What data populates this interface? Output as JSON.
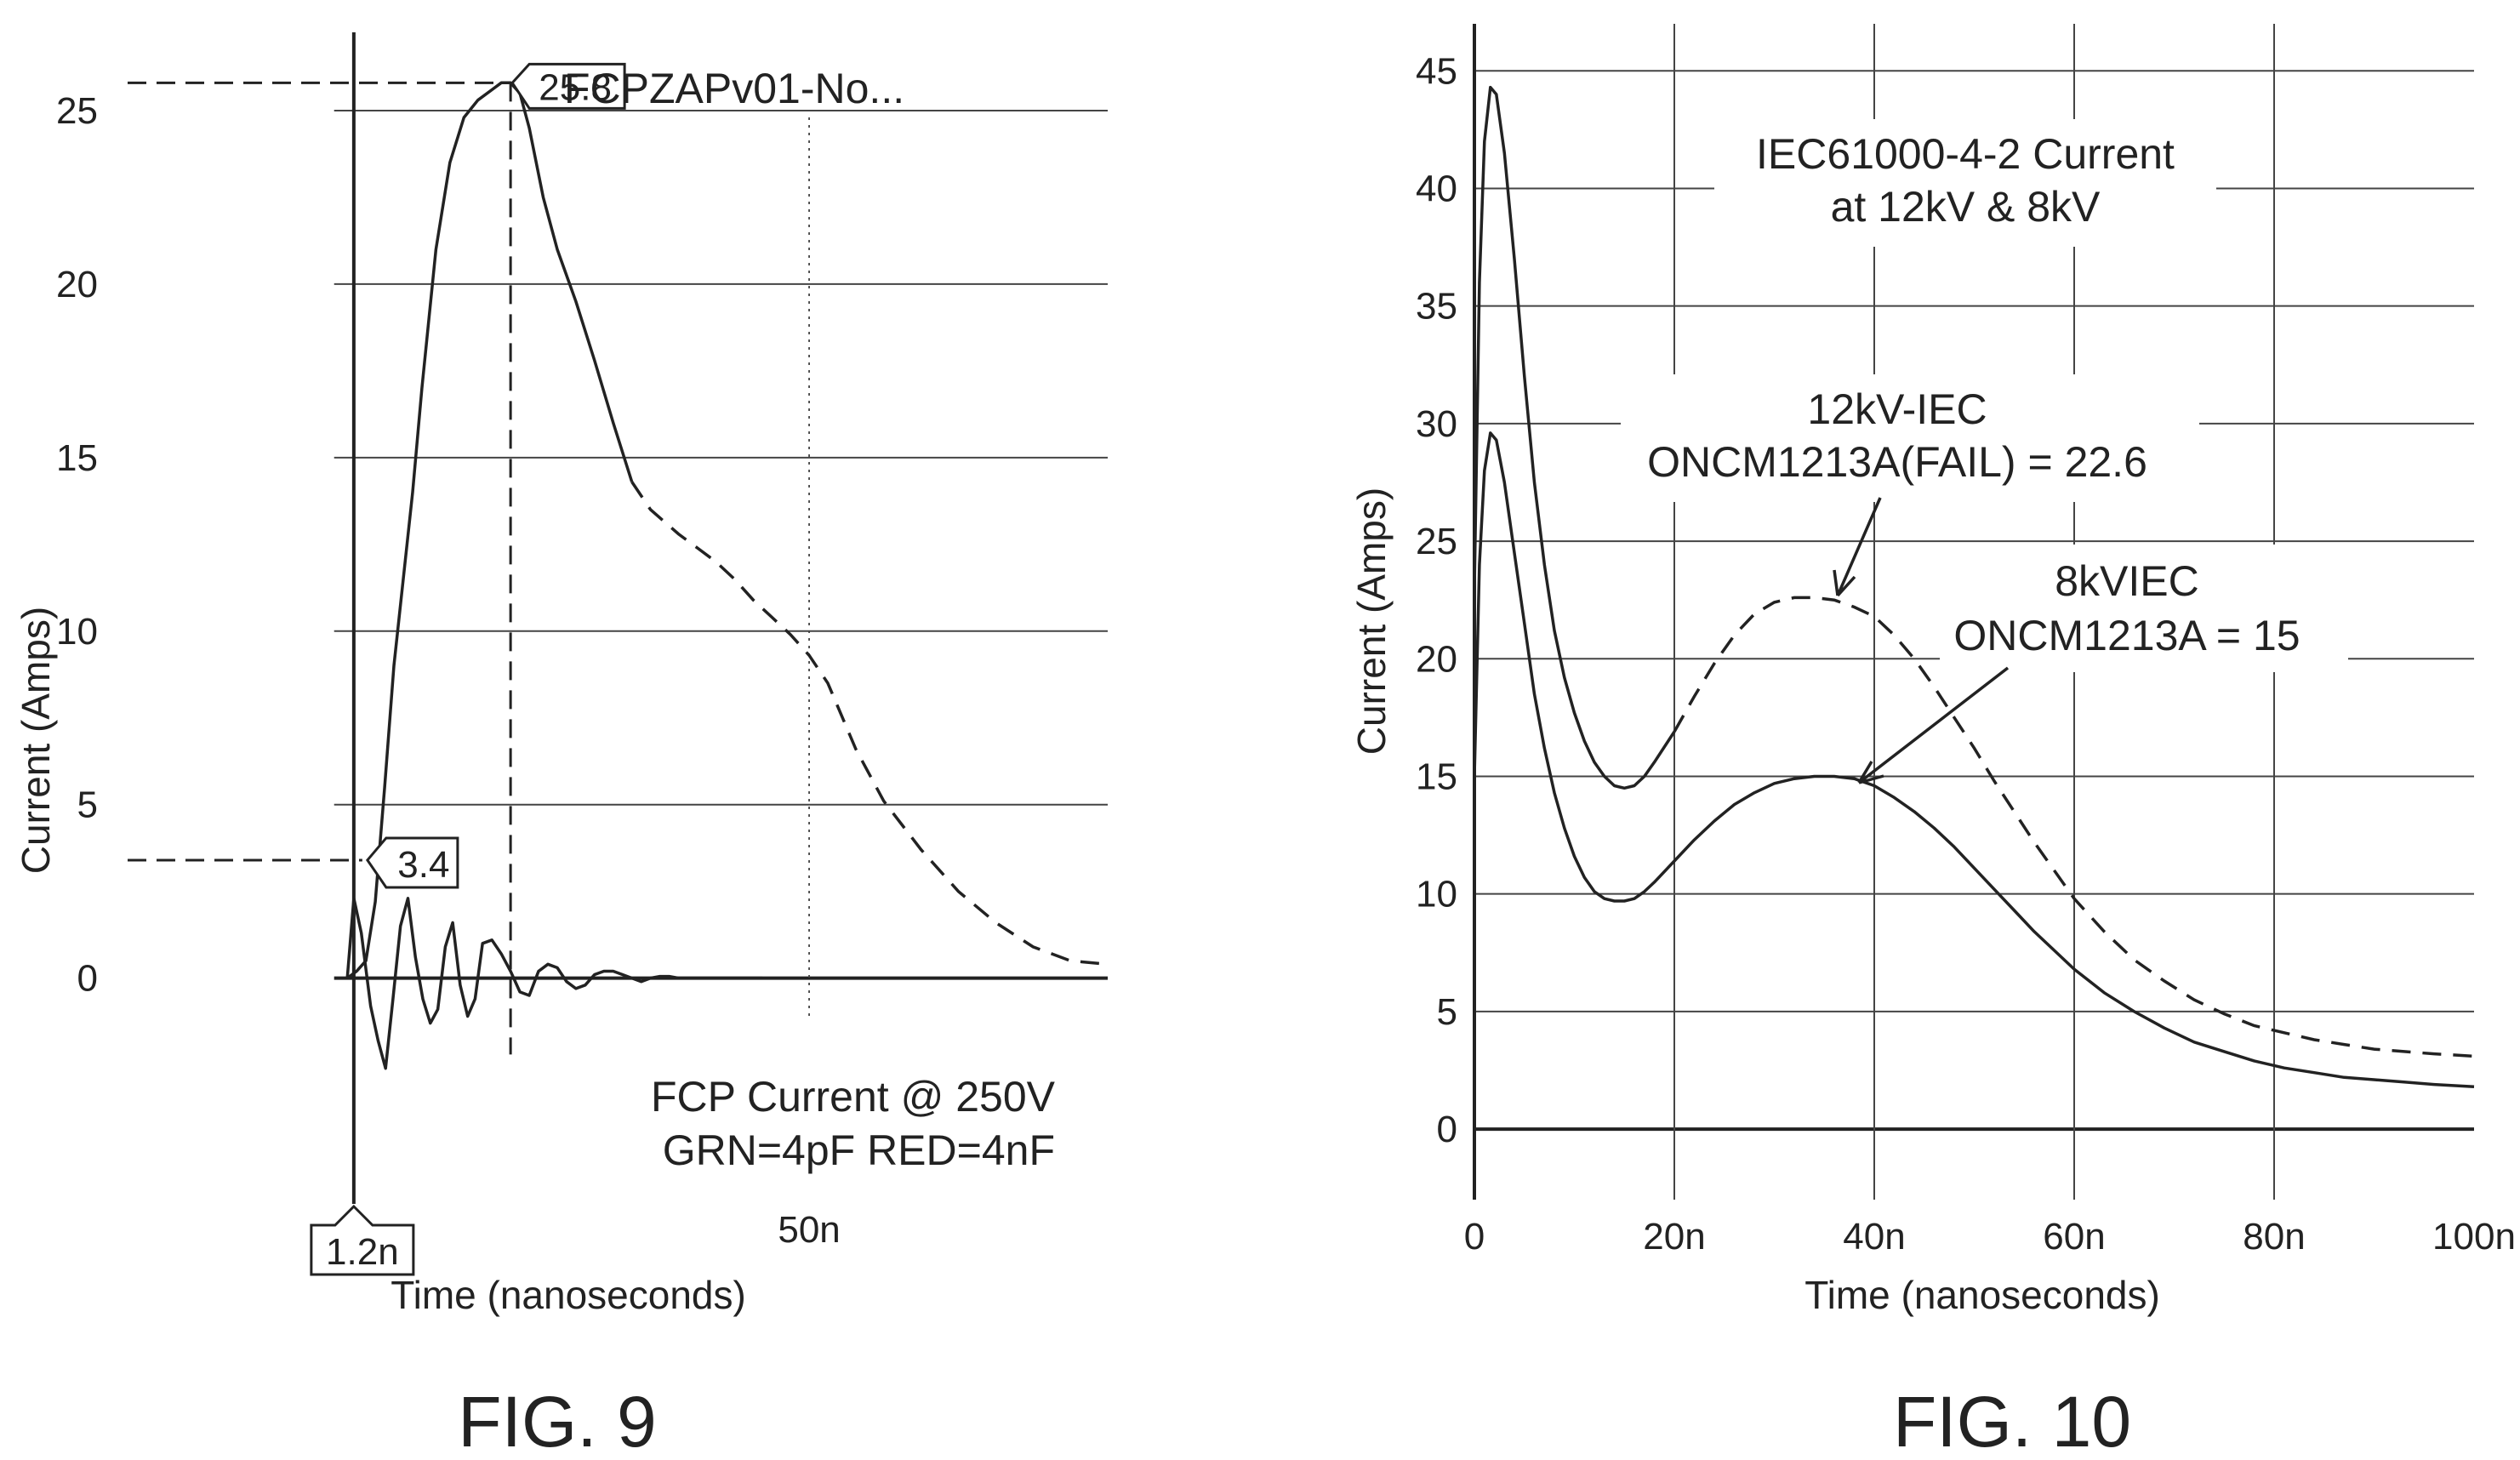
{
  "chart_data": [
    {
      "type": "line",
      "caption": "FIG. 9",
      "title": "FCPZAPv01-No...",
      "xlabel": "Time (nanoseconds)",
      "ylabel": "Current (Amps)",
      "xlim": [
        -23.5,
        82
      ],
      "ylim": [
        -4.3,
        27.5
      ],
      "y_ticks": [
        "0",
        "5",
        "10",
        "15",
        "20",
        "25"
      ],
      "y_tick_values": [
        0,
        5,
        10,
        15,
        20,
        25
      ],
      "x_ticks": [
        "50n"
      ],
      "x_tick_values": [
        50
      ],
      "grid": true,
      "annotation": [
        "FCP Current @ 250V",
        "GRN=4pF RED=4nF"
      ],
      "cursors": [
        {
          "label": "1.2n",
          "x": 1.2
        },
        {
          "label": "3.4",
          "y": 3.4
        },
        {
          "label": "25.8",
          "x": 18,
          "y": 25.8
        }
      ],
      "series": [
        {
          "style": "solid",
          "x": [
            0.5,
            1.5,
            2.5,
            3.5,
            4.5,
            5.5,
            6.5,
            7.5,
            8.5,
            10,
            11.5,
            13,
            14.5,
            16,
            17,
            18,
            19,
            20,
            21.5,
            23,
            25,
            27,
            29,
            31
          ],
          "y": [
            0,
            0.2,
            0.5,
            2.2,
            5.5,
            9,
            11.5,
            14,
            17,
            21,
            23.5,
            24.8,
            25.3,
            25.6,
            25.8,
            25.8,
            25.5,
            24.5,
            22.5,
            21,
            19.5,
            17.8,
            16,
            14.3
          ]
        },
        {
          "style": "dashed",
          "x": [
            31,
            33,
            36,
            38,
            40,
            42,
            44,
            46,
            48,
            50,
            52,
            55,
            58,
            62,
            66,
            70,
            74,
            78,
            82
          ],
          "y": [
            14.3,
            13.5,
            12.8,
            12.4,
            12,
            11.5,
            10.9,
            10.4,
            9.9,
            9.3,
            8.5,
            6.6,
            5.1,
            3.7,
            2.5,
            1.6,
            0.9,
            0.5,
            0.4
          ]
        },
        {
          "style": "solid",
          "x": [
            0.5,
            1.2,
            2,
            3,
            3.8,
            4.6,
            5.4,
            6.2,
            7,
            7.8,
            8.6,
            9.4,
            10.2,
            11,
            11.8,
            12.6,
            13.4,
            14.2,
            15,
            16,
            17,
            18,
            19,
            20,
            21,
            22,
            23,
            24,
            25,
            26,
            27,
            28,
            29,
            30,
            31,
            32,
            33,
            34,
            35,
            36,
            37,
            38,
            39,
            40,
            41,
            42,
            43,
            44,
            45
          ],
          "y": [
            0,
            2.3,
            1.3,
            -0.8,
            -1.8,
            -2.6,
            -0.6,
            1.5,
            2.3,
            0.6,
            -0.6,
            -1.3,
            -0.9,
            0.9,
            1.6,
            -0.2,
            -1.1,
            -0.6,
            1.0,
            1.1,
            0.7,
            0.2,
            -0.4,
            -0.5,
            0.2,
            0.4,
            0.3,
            -0.1,
            -0.3,
            -0.2,
            0.1,
            0.2,
            0.2,
            0.1,
            0,
            -0.1,
            0,
            0.05,
            0.05,
            0,
            0,
            0,
            0,
            0,
            0,
            0,
            0,
            0,
            0
          ]
        }
      ]
    },
    {
      "type": "line",
      "caption": "FIG. 10",
      "title": [
        "IEC61000-4-2 Current",
        "at 12kV & 8kV"
      ],
      "xlabel": "Time (nanoseconds)",
      "ylabel": "Current (Amps)",
      "xlim": [
        0,
        100
      ],
      "ylim": [
        -3,
        47
      ],
      "y_ticks": [
        "0",
        "5",
        "10",
        "15",
        "20",
        "25",
        "30",
        "35",
        "40",
        "45"
      ],
      "y_tick_values": [
        0,
        5,
        10,
        15,
        20,
        25,
        30,
        35,
        40,
        45
      ],
      "x_ticks": [
        "0",
        "20n",
        "40n",
        "60n",
        "80n",
        "100n"
      ],
      "x_tick_values": [
        0,
        20,
        40,
        60,
        80,
        100
      ],
      "grid": true,
      "labels": [
        {
          "text": [
            "12kV-IEC",
            "ONCM1213A(FAIL) = 22.6"
          ],
          "point": [
            36,
            22.6
          ]
        },
        {
          "text": [
            "8kVIEC",
            "ONCM1213A = 15"
          ],
          "point": [
            38,
            15
          ]
        }
      ],
      "series": [
        {
          "name": "12kV-IEC ONCM1213A(FAIL)",
          "style": "solid+dashed",
          "dash_from_x": 20,
          "x": [
            0,
            0.5,
            1,
            1.6,
            2.2,
            3,
            4,
            5,
            6,
            7,
            8,
            9,
            10,
            11,
            12,
            13,
            14,
            15,
            16,
            17,
            18,
            20,
            22,
            24,
            26,
            28,
            30,
            32,
            34,
            36,
            38,
            40,
            42,
            44,
            46,
            48,
            50,
            52,
            54,
            56,
            58,
            60,
            63,
            66,
            69,
            72,
            75,
            78,
            81,
            84,
            87,
            90,
            93,
            96,
            100
          ],
          "y": [
            23,
            36,
            42,
            44.3,
            44,
            41.5,
            37,
            32,
            27.5,
            24,
            21.2,
            19.2,
            17.7,
            16.5,
            15.6,
            15,
            14.6,
            14.5,
            14.6,
            15,
            15.6,
            16.9,
            18.4,
            19.8,
            21,
            21.9,
            22.4,
            22.6,
            22.6,
            22.5,
            22.2,
            21.8,
            21,
            20,
            18.8,
            17.5,
            16.2,
            14.8,
            13.5,
            12.2,
            11,
            9.8,
            8.4,
            7.2,
            6.3,
            5.5,
            4.9,
            4.4,
            4.1,
            3.8,
            3.6,
            3.4,
            3.3,
            3.2,
            3.1
          ]
        },
        {
          "name": "8kVIEC ONCM1213A",
          "style": "solid",
          "x": [
            0,
            0.5,
            1,
            1.6,
            2.2,
            3,
            4,
            5,
            6,
            7,
            8,
            9,
            10,
            11,
            12,
            13,
            14,
            15,
            16,
            17,
            18,
            20,
            22,
            24,
            26,
            28,
            30,
            32,
            34,
            36,
            38,
            40,
            42,
            44,
            46,
            48,
            50,
            52,
            54,
            56,
            58,
            60,
            63,
            66,
            69,
            72,
            75,
            78,
            81,
            84,
            87,
            90,
            93,
            96,
            100
          ],
          "y": [
            15,
            24,
            28,
            29.6,
            29.3,
            27.5,
            24.5,
            21.5,
            18.5,
            16.2,
            14.3,
            12.8,
            11.6,
            10.7,
            10.1,
            9.8,
            9.7,
            9.7,
            9.8,
            10.1,
            10.5,
            11.4,
            12.3,
            13.1,
            13.8,
            14.3,
            14.7,
            14.9,
            15,
            15,
            14.9,
            14.6,
            14.1,
            13.5,
            12.8,
            12,
            11.1,
            10.2,
            9.3,
            8.4,
            7.6,
            6.8,
            5.8,
            5,
            4.3,
            3.7,
            3.3,
            2.9,
            2.6,
            2.4,
            2.2,
            2.1,
            2,
            1.9,
            1.8
          ]
        }
      ]
    }
  ]
}
